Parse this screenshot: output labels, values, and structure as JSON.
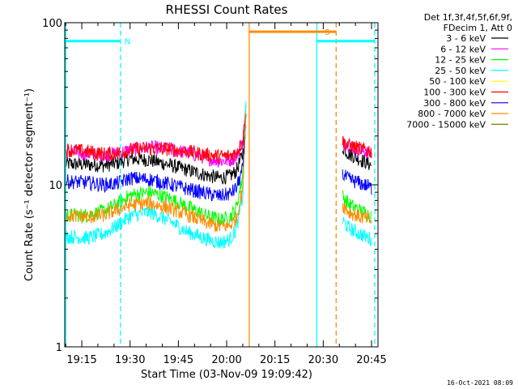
{
  "chart_data": {
    "type": "line",
    "title": "RHESSI Count Rates",
    "xlabel": "Start Time (03-Nov-09 19:09:42)",
    "ylabel": "Count Rate (s⁻¹ detector segment⁻¹)",
    "y_scale": "log",
    "ylim": [
      1,
      100
    ],
    "xlim": [
      "19:09:42",
      "20:47:00"
    ],
    "x_ticks": [
      "19:15",
      "19:30",
      "19:45",
      "20:00",
      "20:15",
      "20:30",
      "20:45"
    ],
    "y_ticks": [
      "1",
      "10",
      "100"
    ],
    "grid": false,
    "legend_position": "top-right",
    "legend_header": [
      "Det 1f,3f,4f,5f,6f,9f,",
      "FDecim 1, Att 0"
    ],
    "footer_date": "16-Oct-2021 08:09",
    "series": [
      {
        "name": "3 - 6 keV",
        "color": "#000000",
        "segments": [
          {
            "x": [
              "19:10",
              "19:17",
              "19:22",
              "19:26",
              "19:30",
              "19:36",
              "19:42",
              "19:48",
              "19:54",
              "19:58",
              "20:01",
              "20:03",
              "20:05",
              "20:06"
            ],
            "y": [
              13.5,
              13.3,
              13.2,
              13.6,
              14.5,
              14.2,
              13.3,
              12.3,
              11.4,
              11.0,
              11.3,
              12.2,
              15.5,
              26
            ]
          },
          {
            "x": [
              "20:36",
              "20:38",
              "20:41",
              "20:44",
              "20:45"
            ],
            "y": [
              17,
              15.5,
              14.5,
              13.5,
              13.2
            ]
          }
        ]
      },
      {
        "name": "6 - 12 keV",
        "color": "#ff00ff",
        "segments": [
          {
            "x": [
              "19:10",
              "19:17",
              "19:22",
              "19:26",
              "19:30",
              "19:36",
              "19:42",
              "19:48",
              "19:54",
              "19:58",
              "20:01",
              "20:03",
              "20:05",
              "20:06"
            ],
            "y": [
              16,
              15.5,
              15.3,
              15.6,
              16.4,
              17.0,
              16.6,
              15.7,
              14.6,
              14.0,
              14.2,
              15.0,
              18.5,
              30
            ]
          },
          {
            "x": [
              "20:36",
              "20:38",
              "20:41",
              "20:44",
              "20:45"
            ],
            "y": [
              18.5,
              17.5,
              16.5,
              15.8,
              15.5
            ]
          }
        ]
      },
      {
        "name": "12 - 25 keV",
        "color": "#00ff00",
        "segments": [
          {
            "x": [
              "19:10",
              "19:17",
              "19:22",
              "19:26",
              "19:30",
              "19:36",
              "19:42",
              "19:48",
              "19:54",
              "19:58",
              "20:01",
              "20:03",
              "20:05",
              "20:06"
            ],
            "y": [
              6.5,
              6.5,
              6.9,
              7.6,
              8.6,
              9.0,
              8.3,
              7.3,
              6.4,
              6.1,
              6.3,
              7.2,
              11.5,
              34
            ]
          },
          {
            "x": [
              "20:36",
              "20:38",
              "20:41",
              "20:44",
              "20:45"
            ],
            "y": [
              8.5,
              7.6,
              7.0,
              6.6,
              6.4
            ]
          }
        ]
      },
      {
        "name": "25 - 50 keV",
        "color": "#00ffff",
        "segments": [
          {
            "x": [
              "19:10",
              "19:17",
              "19:22",
              "19:26",
              "19:30",
              "19:36",
              "19:42",
              "19:48",
              "19:54",
              "19:58",
              "20:01",
              "20:03",
              "20:05",
              "20:06"
            ],
            "y": [
              4.8,
              4.7,
              5.0,
              5.6,
              6.4,
              6.8,
              6.0,
              5.1,
              4.6,
              4.4,
              4.6,
              5.3,
              8.5,
              33
            ]
          },
          {
            "x": [
              "20:36",
              "20:38",
              "20:41",
              "20:44",
              "20:45"
            ],
            "y": [
              6.0,
              5.4,
              5.0,
              4.7,
              4.6
            ]
          }
        ]
      },
      {
        "name": "50 - 100 keV",
        "color": "#ffff00",
        "segments": []
      },
      {
        "name": "100 - 300 keV",
        "color": "#ff0000",
        "segments": [
          {
            "x": [
              "19:10",
              "19:17",
              "19:22",
              "19:26",
              "19:30",
              "19:36",
              "19:42",
              "19:48",
              "19:54",
              "19:58",
              "20:01",
              "20:03",
              "20:05",
              "20:06"
            ],
            "y": [
              16.5,
              16.0,
              15.5,
              15.7,
              16.4,
              16.8,
              16.6,
              16.0,
              15.3,
              15.0,
              15.1,
              15.8,
              18.5,
              29
            ]
          },
          {
            "x": [
              "20:36",
              "20:38",
              "20:41",
              "20:44",
              "20:45"
            ],
            "y": [
              18.5,
              17.5,
              16.8,
              16.2,
              16.0
            ]
          }
        ]
      },
      {
        "name": "300 - 800 keV",
        "color": "#0000ff",
        "segments": [
          {
            "x": [
              "19:10",
              "19:17",
              "19:22",
              "19:26",
              "19:30",
              "19:36",
              "19:42",
              "19:48",
              "19:54",
              "19:58",
              "20:01",
              "20:03",
              "20:05",
              "20:06"
            ],
            "y": [
              10.5,
              10.3,
              10.0,
              10.2,
              11.0,
              10.8,
              10.1,
              9.4,
              8.8,
              8.5,
              8.8,
              9.5,
              12.5,
              25
            ]
          },
          {
            "x": [
              "20:36",
              "20:38",
              "20:41",
              "20:44",
              "20:45"
            ],
            "y": [
              11.5,
              10.8,
              10.3,
              9.8,
              9.5
            ]
          }
        ]
      },
      {
        "name": "800 - 7000 keV",
        "color": "#ff8c00",
        "segments": [
          {
            "x": [
              "19:10",
              "19:17",
              "19:22",
              "19:26",
              "19:30",
              "19:36",
              "19:42",
              "19:48",
              "19:54",
              "19:58",
              "20:01",
              "20:03",
              "20:05",
              "20:06"
            ],
            "y": [
              6.5,
              6.3,
              6.5,
              7.0,
              7.5,
              7.7,
              7.2,
              6.5,
              5.8,
              5.5,
              5.6,
              6.2,
              9.5,
              28
            ]
          },
          {
            "x": [
              "20:36",
              "20:38",
              "20:41",
              "20:44",
              "20:45"
            ],
            "y": [
              7.5,
              6.8,
              6.4,
              6.1,
              6.0
            ]
          }
        ]
      },
      {
        "name": "7000 - 15000 keV",
        "color": "#808000",
        "segments": []
      }
    ],
    "flags": [
      {
        "label": "N",
        "color": "#00ffff",
        "segments": [
          [
            "19:10",
            "19:27"
          ]
        ],
        "level": 77
      },
      {
        "label": "S",
        "color": "#ff8c00",
        "segments": [
          [
            "20:07",
            "20:34"
          ]
        ],
        "level": 88
      },
      {
        "label": "",
        "color": "#00ffff",
        "segments": [
          [
            "20:28",
            "20:46"
          ]
        ],
        "level": 77
      }
    ],
    "vlines": [
      {
        "x": "19:10",
        "color": "#00ffff",
        "style": "solid"
      },
      {
        "x": "19:27",
        "color": "#00ffff",
        "style": "dashed"
      },
      {
        "x": "20:07",
        "color": "#ff8c00",
        "style": "solid"
      },
      {
        "x": "20:28",
        "color": "#00ffff",
        "style": "solid"
      },
      {
        "x": "20:34",
        "color": "#ff8c00",
        "style": "dashed"
      },
      {
        "x": "20:46",
        "color": "#00ffff",
        "style": "dashed"
      }
    ]
  }
}
